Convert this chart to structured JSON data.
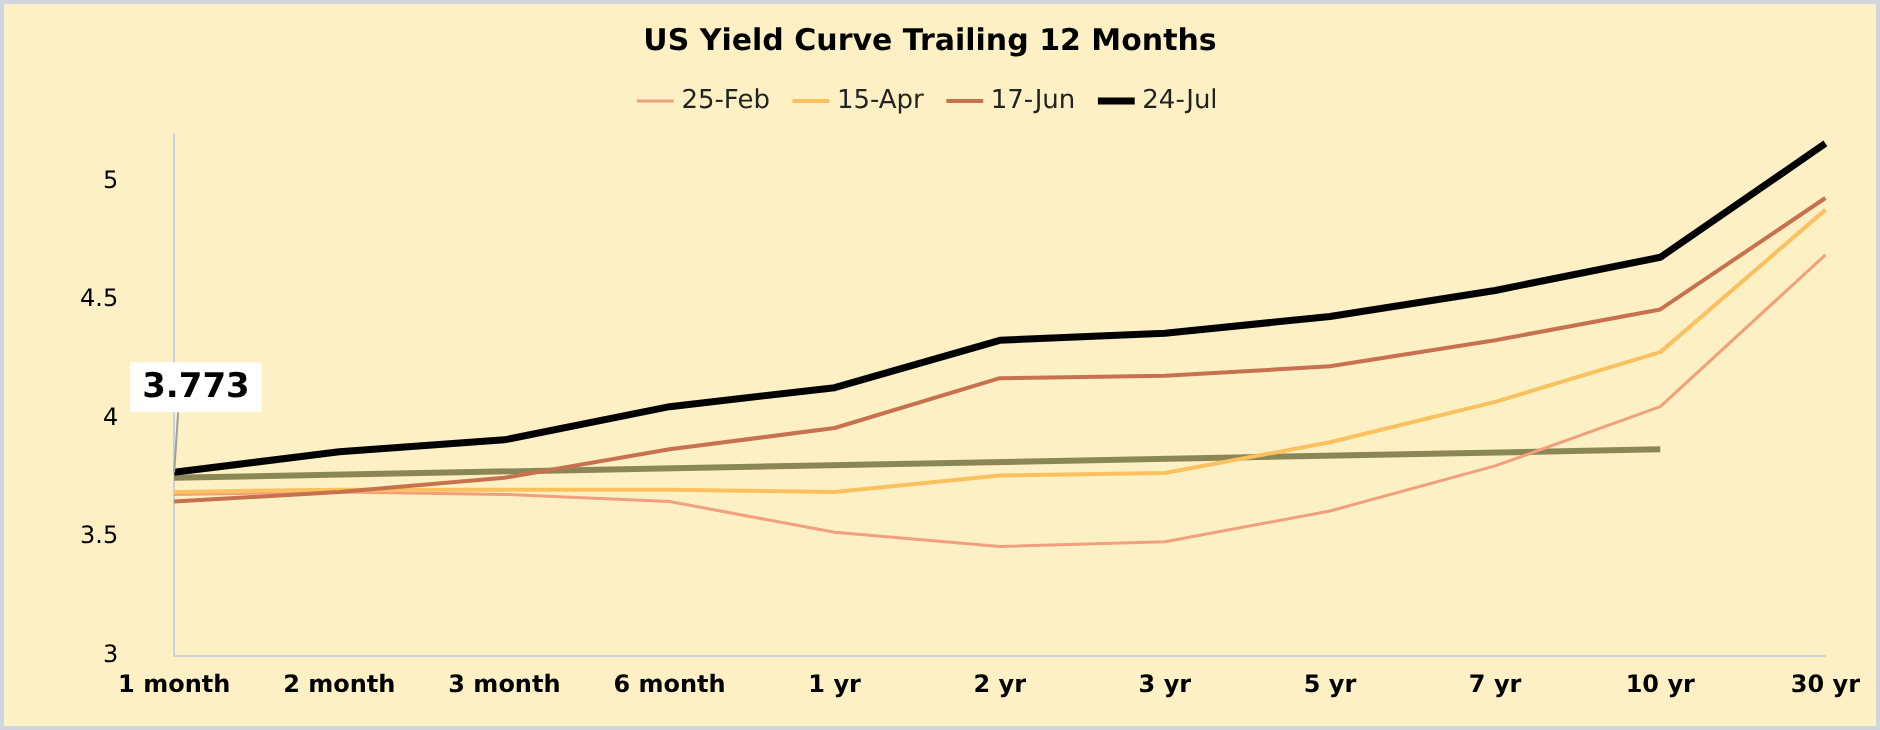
{
  "chart_data": {
    "type": "line",
    "title": "US Yield Curve Trailing 12 Months",
    "categories": [
      "1 month",
      "2 month",
      "3 month",
      "6 month",
      "1 yr",
      "2 yr",
      "3 yr",
      "5 yr",
      "7 yr",
      "10 yr",
      "30 yr"
    ],
    "series": [
      {
        "name": "25-Feb",
        "color": "#f2a07b",
        "values": [
          3.68,
          3.69,
          3.68,
          3.65,
          3.52,
          3.46,
          3.48,
          3.61,
          3.8,
          4.05,
          4.69
        ]
      },
      {
        "name": "15-Apr",
        "color": "#fbc15e",
        "values": [
          3.69,
          3.7,
          3.7,
          3.7,
          3.69,
          3.76,
          3.77,
          3.9,
          4.07,
          4.28,
          4.88
        ]
      },
      {
        "name": "17-Jun",
        "color": "#c8714f",
        "values": [
          3.65,
          3.69,
          3.75,
          3.87,
          3.96,
          4.17,
          4.18,
          4.22,
          4.33,
          4.46,
          4.93
        ]
      },
      {
        "name": "24-Jul",
        "color": "#000000",
        "values": [
          3.773,
          3.86,
          3.91,
          4.05,
          4.13,
          4.33,
          4.36,
          4.43,
          4.54,
          4.68,
          5.16
        ]
      },
      {
        "type": "line",
        "color": "#8b8655",
        "x": [
          "1 month",
          "10 yr"
        ],
        "values": [
          3.75,
          3.87
        ]
      }
    ],
    "ylim": [
      3,
      5.2
    ],
    "yticks": [
      3,
      3.5,
      4,
      4.5,
      5
    ],
    "grid": false,
    "legend": "top",
    "marker": "none",
    "line_style": "solid",
    "annotations": [
      {
        "text": "3.773",
        "x": "1 month",
        "y": 3.773
      }
    ]
  }
}
